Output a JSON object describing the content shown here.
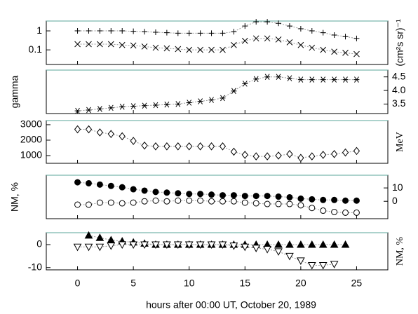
{
  "chart_data": [
    {
      "type": "line",
      "ylabel": "(cm²s sr)⁻¹",
      "ylabel_side": "right",
      "yaxis_side": "left",
      "ylog": true,
      "xlim": [
        -2.8,
        27.8
      ],
      "ylim": [
        0.017,
        3.3
      ],
      "yticks": [
        1,
        0.1
      ],
      "x": [
        0,
        1,
        2,
        3,
        4,
        5,
        6,
        7,
        8,
        9,
        10,
        11,
        12,
        13,
        14,
        15,
        16,
        17,
        18,
        19,
        20,
        21,
        22,
        23,
        24,
        25
      ],
      "series": [
        {
          "marker": "plus",
          "color": "#000",
          "values": [
            1.0,
            1.0,
            1.0,
            1.0,
            1.0,
            0.95,
            0.9,
            0.85,
            0.8,
            0.75,
            0.75,
            0.75,
            0.75,
            0.75,
            0.9,
            1.8,
            3.0,
            3.0,
            2.5,
            1.8,
            1.3,
            1.0,
            0.8,
            0.6,
            0.5,
            0.4
          ]
        },
        {
          "marker": "cross",
          "color": "#000",
          "values": [
            0.2,
            0.2,
            0.2,
            0.2,
            0.18,
            0.17,
            0.15,
            0.13,
            0.12,
            0.11,
            0.1,
            0.1,
            0.1,
            0.1,
            0.18,
            0.3,
            0.4,
            0.4,
            0.35,
            0.25,
            0.18,
            0.13,
            0.1,
            0.08,
            0.07,
            0.06
          ]
        }
      ]
    },
    {
      "type": "line",
      "ylabel": "gamma",
      "ylabel_side": "left",
      "yaxis_side": "right",
      "xlim": [
        -2.8,
        27.8
      ],
      "ylim": [
        3.15,
        4.75
      ],
      "yticks": [
        3.5,
        {
          "value": 4,
          "label": "4.0"
        },
        4.5
      ],
      "x": [
        0,
        1,
        2,
        3,
        4,
        5,
        6,
        7,
        8,
        9,
        10,
        11,
        12,
        13,
        14,
        15,
        16,
        17,
        18,
        19,
        20,
        21,
        22,
        23,
        24,
        25
      ],
      "series": [
        {
          "marker": "asterisk",
          "color": "#000",
          "values": [
            3.25,
            3.28,
            3.32,
            3.36,
            3.4,
            3.42,
            3.44,
            3.46,
            3.48,
            3.5,
            3.55,
            3.6,
            3.65,
            3.72,
            3.98,
            4.25,
            4.42,
            4.5,
            4.5,
            4.45,
            4.4,
            4.4,
            4.4,
            4.4,
            4.4,
            4.4
          ]
        }
      ]
    },
    {
      "type": "line",
      "ylabel": "MeV",
      "ylabel_side": "right",
      "yaxis_side": "left",
      "xlim": [
        -2.8,
        27.8
      ],
      "ylim": [
        500,
        3270
      ],
      "yticks": [
        3000,
        2000,
        1000
      ],
      "x": [
        0,
        1,
        2,
        3,
        4,
        5,
        6,
        7,
        8,
        9,
        10,
        11,
        12,
        13,
        14,
        15,
        16,
        17,
        18,
        19,
        20,
        21,
        22,
        23,
        24,
        25
      ],
      "series": [
        {
          "marker": "diamond-open",
          "color": "#000",
          "values": [
            2700,
            2700,
            2500,
            2400,
            2250,
            1950,
            1650,
            1600,
            1600,
            1600,
            1600,
            1600,
            1600,
            1600,
            1250,
            1050,
            950,
            950,
            1000,
            1100,
            850,
            950,
            1050,
            1100,
            1200,
            1300
          ]
        }
      ]
    },
    {
      "type": "line",
      "ylabel": "NM, %",
      "ylabel_side": "left",
      "yaxis_side": "right",
      "xlim": [
        -2.8,
        27.8
      ],
      "ylim": [
        -13,
        19.5
      ],
      "yticks": [
        10,
        0
      ],
      "x": [
        0,
        1,
        2,
        3,
        4,
        5,
        6,
        7,
        8,
        9,
        10,
        11,
        12,
        13,
        14,
        15,
        16,
        17,
        18,
        19,
        20,
        21,
        22,
        23,
        24,
        25
      ],
      "series": [
        {
          "marker": "circle-filled",
          "color": "#000",
          "values": [
            14.2,
            13.5,
            12.5,
            11.5,
            10.5,
            9,
            8,
            7,
            6.5,
            6,
            5.5,
            5.5,
            5,
            4.5,
            4.5,
            4,
            4,
            4,
            3.5,
            3,
            2,
            1.5,
            1,
            1,
            0.5,
            0.5
          ]
        },
        {
          "marker": "circle-open",
          "color": "#000",
          "values": [
            -2.5,
            -2.5,
            -1,
            -1,
            -1.5,
            -1,
            0,
            0.5,
            0,
            0.5,
            0.5,
            0.5,
            0,
            0,
            0,
            -1,
            -1.5,
            -2,
            -2,
            -2,
            -3,
            -5,
            -7,
            -8,
            -8.5,
            -8.5
          ]
        }
      ]
    },
    {
      "type": "line",
      "ylabel": "NM, %",
      "ylabel_side": "right",
      "yaxis_side": "left",
      "xlabel": "hours after 00:00 UT, October 20, 1989",
      "xlim": [
        -2.8,
        27.8
      ],
      "ylim": [
        -11,
        5.2
      ],
      "yticks": [
        0,
        -10
      ],
      "xticks": [
        0,
        5,
        10,
        15,
        20,
        25
      ],
      "x": [
        0,
        1,
        2,
        3,
        4,
        5,
        6,
        7,
        8,
        9,
        10,
        11,
        12,
        13,
        14,
        15,
        16,
        17,
        18,
        19,
        20,
        21,
        22,
        23,
        24
      ],
      "series": [
        {
          "marker": "triangle-filled",
          "color": "#000",
          "values": [
            null,
            4,
            3,
            2,
            1.5,
            1,
            0.5,
            0,
            0,
            0,
            0,
            0,
            0,
            0,
            0,
            0,
            0,
            0,
            0,
            0,
            0,
            0,
            0,
            0,
            0
          ]
        },
        {
          "marker": "triangle-down-open",
          "color": "#000",
          "values": [
            -1,
            -1,
            -1,
            -0.5,
            0,
            0,
            0,
            0,
            0,
            0,
            0,
            0,
            0,
            0,
            -0.5,
            -1,
            -1.5,
            -2,
            -3,
            -5,
            -7,
            -9,
            -9,
            -8.5,
            null
          ]
        }
      ]
    }
  ]
}
